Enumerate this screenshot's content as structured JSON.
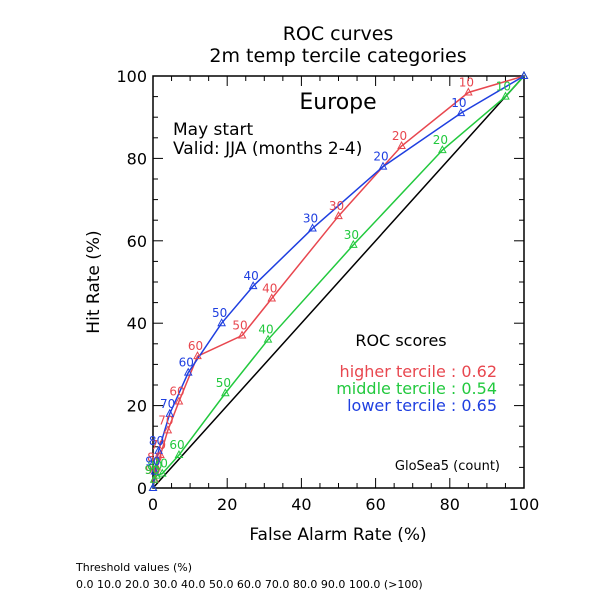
{
  "chart_data": {
    "type": "line",
    "title": "ROC curves",
    "subtitle": "2m temp tercile categories",
    "region": "Europe",
    "start_text": "May start",
    "valid_text": "Valid: JJA (months 2-4)",
    "xlabel": "False Alarm Rate (%)",
    "ylabel": "Hit Rate (%)",
    "xlim": [
      0,
      100
    ],
    "ylim": [
      0,
      100
    ],
    "xticks": [
      0,
      20,
      40,
      60,
      80,
      100
    ],
    "yticks": [
      0,
      20,
      40,
      60,
      80,
      100
    ],
    "xtick_labels": [
      "0",
      "20",
      "40",
      "60",
      "80",
      "100"
    ],
    "ytick_labels": [
      "0",
      "20",
      "40",
      "60",
      "80",
      "100"
    ],
    "grid": false,
    "diagonal": true,
    "legend_title": "ROC scores",
    "model_label": "GloSea5 (count)",
    "threshold_title": "Threshold values (%)",
    "threshold_values": "0.0 10.0 20.0 30.0 40.0 50.0 60.0 70.0 80.0 90.0 100.0 (>100)",
    "series": [
      {
        "name": "higher tercile",
        "score": "0.62",
        "legend_text": "higher tercile : 0.62",
        "color": "#e8474f",
        "x": [
          0,
          0.5,
          1,
          2,
          4,
          7,
          12,
          24,
          32,
          50,
          67,
          85,
          100
        ],
        "y": [
          0,
          2,
          5,
          8,
          14,
          21,
          32,
          37,
          46,
          66,
          83,
          96,
          100
        ],
        "labels": [
          "",
          "90",
          "80",
          "70",
          "70",
          "60",
          "60",
          "50",
          "40",
          "30",
          "20",
          "10",
          ""
        ]
      },
      {
        "name": "middle tercile",
        "score": "0.54",
        "legend_text": "middle tercile : 0.54",
        "color": "#22c93e",
        "x": [
          0,
          0.3,
          1,
          2.5,
          7,
          19.5,
          31,
          54,
          78,
          95,
          100
        ],
        "y": [
          0,
          2,
          3,
          3.5,
          8,
          23,
          36,
          59,
          82,
          95,
          100
        ],
        "labels": [
          "",
          "90",
          "80",
          "70",
          "60",
          "50",
          "40",
          "30",
          "20",
          "10",
          ""
        ]
      },
      {
        "name": "lower tercile",
        "score": "0.65",
        "legend_text": "lower tercile : 0.65",
        "color": "#1f3fe0",
        "x": [
          0,
          0.5,
          1.5,
          4.5,
          9.5,
          18.5,
          27,
          43,
          62,
          83,
          100
        ],
        "y": [
          0,
          4,
          9,
          18,
          28,
          40,
          49,
          63,
          78,
          91,
          100
        ],
        "labels": [
          "",
          "90",
          "80",
          "70",
          "60",
          "50",
          "40",
          "30",
          "20",
          "10",
          ""
        ]
      }
    ]
  }
}
